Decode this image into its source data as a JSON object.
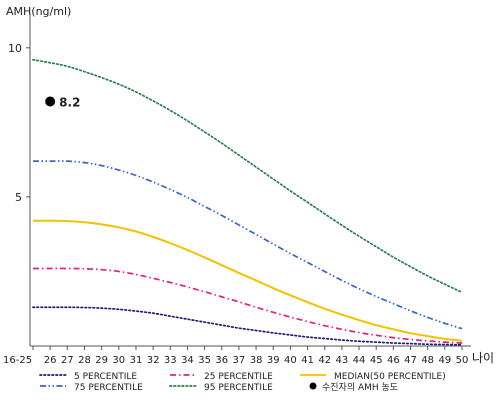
{
  "chart_data": {
    "type": "line",
    "ylabel": "AMH(ng/ml)",
    "xlabel": "나이",
    "ylim": [
      0,
      11
    ],
    "yticks": [
      5,
      10
    ],
    "grid": false,
    "legend_position": "bottom",
    "categories": [
      "16-25",
      "26",
      "27",
      "28",
      "29",
      "30",
      "31",
      "32",
      "33",
      "34",
      "35",
      "36",
      "37",
      "38",
      "39",
      "40",
      "41",
      "42",
      "43",
      "44",
      "45",
      "46",
      "47",
      "48",
      "49",
      "50"
    ],
    "series": [
      {
        "name": "5 PERCENTILE",
        "color": "#1b1b7a",
        "dash": "dot",
        "values": [
          1.3,
          1.3,
          1.3,
          1.29,
          1.27,
          1.23,
          1.17,
          1.1,
          1.0,
          0.9,
          0.8,
          0.7,
          0.6,
          0.52,
          0.44,
          0.37,
          0.3,
          0.25,
          0.2,
          0.16,
          0.13,
          0.1,
          0.08,
          0.06,
          0.05,
          0.04
        ]
      },
      {
        "name": "25 PERCENTILE",
        "color": "#e0208a",
        "dash": "dashdot",
        "values": [
          2.6,
          2.6,
          2.6,
          2.59,
          2.56,
          2.5,
          2.4,
          2.27,
          2.13,
          1.98,
          1.82,
          1.65,
          1.48,
          1.3,
          1.13,
          0.97,
          0.82,
          0.68,
          0.56,
          0.45,
          0.36,
          0.28,
          0.22,
          0.17,
          0.13,
          0.1
        ]
      },
      {
        "name": "MEDIAN(50 PERCENTILE)",
        "color": "#f2c200",
        "dash": "solid",
        "values": [
          4.2,
          4.2,
          4.19,
          4.15,
          4.08,
          3.98,
          3.84,
          3.66,
          3.45,
          3.22,
          2.97,
          2.71,
          2.45,
          2.2,
          1.94,
          1.7,
          1.47,
          1.25,
          1.05,
          0.87,
          0.7,
          0.56,
          0.43,
          0.33,
          0.24,
          0.18
        ]
      },
      {
        "name": "75 PERCENTILE",
        "color": "#3a63c8",
        "dash": "dashdotdot",
        "values": [
          6.2,
          6.2,
          6.2,
          6.15,
          6.05,
          5.9,
          5.72,
          5.5,
          5.25,
          4.98,
          4.68,
          4.38,
          4.06,
          3.74,
          3.42,
          3.1,
          2.8,
          2.5,
          2.2,
          1.92,
          1.66,
          1.42,
          1.18,
          0.96,
          0.76,
          0.58
        ]
      },
      {
        "name": "95 PERCENTILE",
        "color": "#2e7d4a",
        "dash": "dot",
        "values": [
          9.6,
          9.5,
          9.38,
          9.2,
          9.0,
          8.78,
          8.52,
          8.22,
          7.9,
          7.55,
          7.18,
          6.8,
          6.4,
          6.0,
          5.6,
          5.2,
          4.82,
          4.43,
          4.05,
          3.68,
          3.33,
          2.98,
          2.66,
          2.35,
          2.07,
          1.8
        ]
      }
    ],
    "marker": {
      "name": "수진자의 AMH 농도",
      "category": "26",
      "value": 8.2,
      "label": "8.2",
      "color": "#000000"
    }
  }
}
